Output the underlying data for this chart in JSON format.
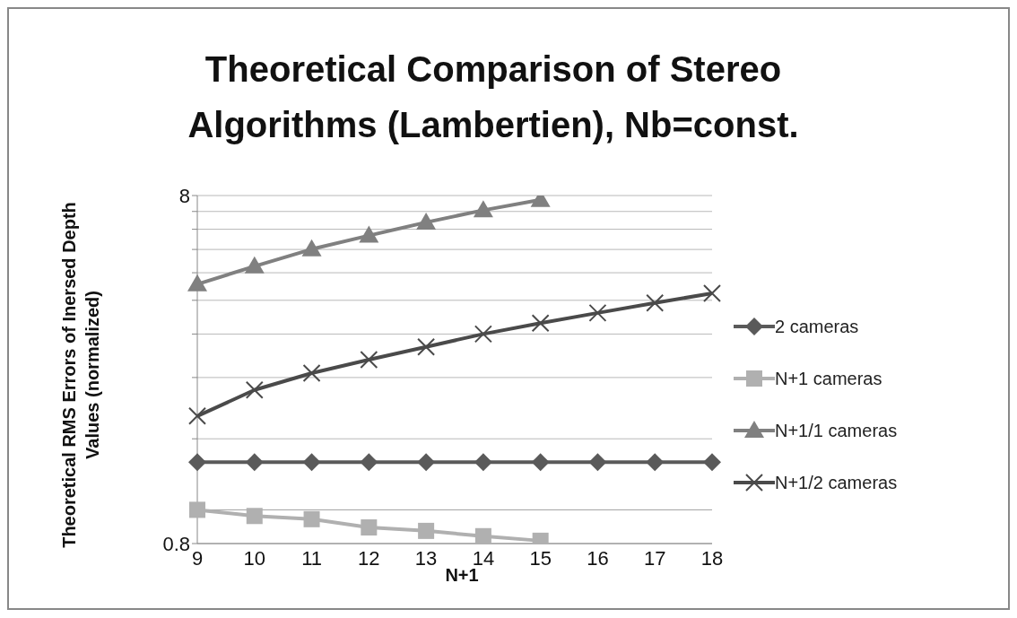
{
  "chart_data": {
    "type": "line",
    "title": "Theoretical Comparison of Stereo Algorithms (Lambertien), Nb=const.",
    "xlabel": "N+1",
    "ylabel": "Theoretical RMS Errors of Inersed Depth Values (normalized)",
    "categories": [
      "9",
      "10",
      "11",
      "12",
      "13",
      "14",
      "15",
      "16",
      "17",
      "18"
    ],
    "series": [
      {
        "name": "2 cameras",
        "color": "#5a5a5a",
        "marker": "diamond",
        "values": [
          1.37,
          1.37,
          1.37,
          1.37,
          1.37,
          1.37,
          1.37,
          1.37,
          1.37,
          1.37
        ]
      },
      {
        "name": "N+1 cameras",
        "color": "#b0b0b0",
        "marker": "square",
        "values": [
          1.0,
          0.96,
          0.94,
          0.89,
          0.87,
          0.84,
          0.815,
          null,
          null,
          null
        ]
      },
      {
        "name": "N+1/1 cameras",
        "color": "#808080",
        "marker": "triangle",
        "values": [
          4.45,
          5.01,
          5.61,
          6.14,
          6.7,
          7.26,
          7.78,
          null,
          null,
          null
        ]
      },
      {
        "name": "N+1/2 cameras",
        "color": "#4a4a4a",
        "marker": "cross",
        "values": [
          1.86,
          2.21,
          2.47,
          2.7,
          2.94,
          3.2,
          3.44,
          3.68,
          3.93,
          4.19
        ]
      }
    ],
    "log": "y",
    "ylim": [
      0.8,
      8
    ],
    "yticks": [
      0.8,
      {
        "value": 1.6,
        "label": null
      },
      {
        "value": 2.4,
        "label": null
      },
      {
        "value": 3.2,
        "label": null
      },
      {
        "value": 4,
        "label": null
      },
      {
        "value": 4.8,
        "label": null
      },
      {
        "value": 5.6,
        "label": null
      },
      {
        "value": 6.4,
        "label": null
      },
      {
        "value": 7.2,
        "label": null
      },
      8
    ],
    "ref_lines": [
      {
        "axis": "y",
        "value": 1,
        "color": "#a0a0a0"
      }
    ],
    "grid": "y",
    "legend": "right",
    "line_style": "solid"
  }
}
